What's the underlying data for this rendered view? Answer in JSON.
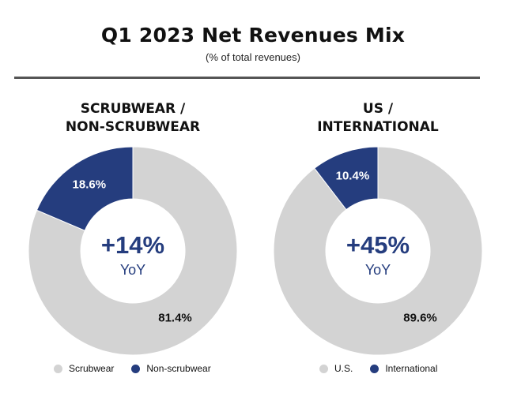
{
  "title": "Q1 2023 Net Revenues Mix",
  "subtitle": "(% of total revenues)",
  "colors": {
    "gray": "#d3d3d3",
    "navy": "#253d7e",
    "white": "#ffffff",
    "text": "#111111"
  },
  "chart_data": [
    {
      "type": "pie",
      "donut": true,
      "title_lines": [
        "SCRUBWEAR /",
        "NON-SCRUBWEAR"
      ],
      "categories": [
        "Scrubwear",
        "Non-scrubwear"
      ],
      "values": [
        81.4,
        18.6
      ],
      "value_labels": [
        "81.4%",
        "18.6%"
      ],
      "series_colors": [
        "#d3d3d3",
        "#253d7e"
      ],
      "center_value": "+14%",
      "center_label": "YoY",
      "legend": [
        "Scrubwear",
        "Non-scrubwear"
      ]
    },
    {
      "type": "pie",
      "donut": true,
      "title_lines": [
        "US /",
        "INTERNATIONAL"
      ],
      "categories": [
        "U.S.",
        "International"
      ],
      "values": [
        89.6,
        10.4
      ],
      "value_labels": [
        "89.6%",
        "10.4%"
      ],
      "series_colors": [
        "#d3d3d3",
        "#253d7e"
      ],
      "center_value": "+45%",
      "center_label": "YoY",
      "legend": [
        "U.S.",
        "International"
      ]
    }
  ]
}
